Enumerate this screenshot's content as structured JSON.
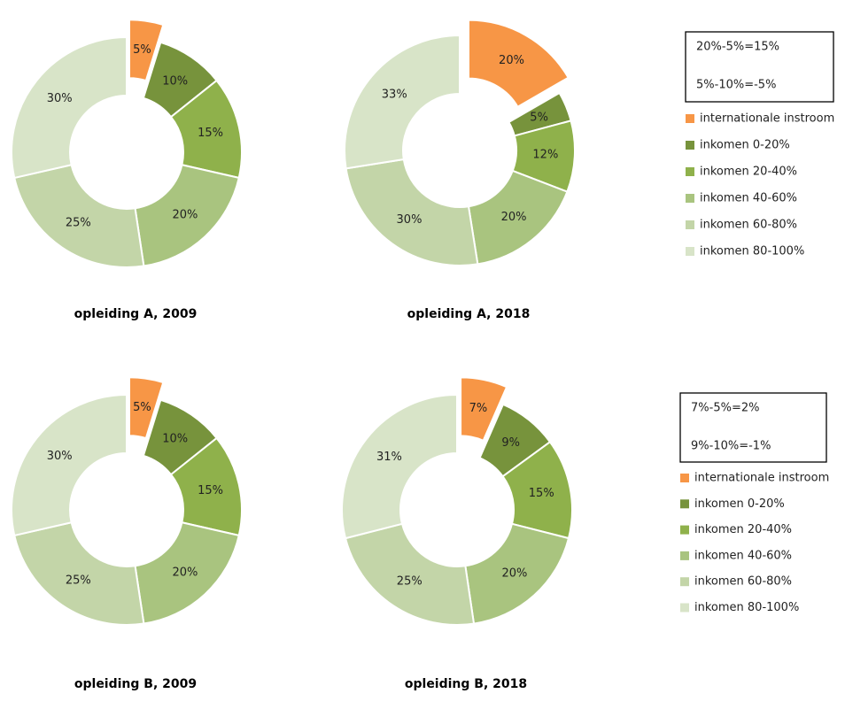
{
  "chart_data": [
    {
      "type": "donut",
      "title": "opleiding A, 2009",
      "categories": [
        "internationale instroom",
        "inkomen 0-20%",
        "inkomen 20-40%",
        "inkomen 40-60%",
        "inkomen 60-80%",
        "inkomen 80-100%"
      ],
      "values": [
        5,
        10,
        15,
        20,
        25,
        30
      ],
      "value_labels": [
        "5%",
        "10%",
        "15%",
        "20%",
        "25%",
        "30%"
      ],
      "colors": [
        "#f79646",
        "#77933c",
        "#8fb14b",
        "#a9c47f",
        "#c3d5a8",
        "#d8e4c8"
      ]
    },
    {
      "type": "donut",
      "title": "opleiding A, 2018",
      "categories": [
        "internationale instroom",
        "inkomen 0-20%",
        "inkomen 20-40%",
        "inkomen 40-60%",
        "inkomen 60-80%",
        "inkomen 80-100%"
      ],
      "values": [
        20,
        5,
        12,
        20,
        30,
        33
      ],
      "value_labels": [
        "20%",
        "5%",
        "12%",
        "20%",
        "30%",
        "33%"
      ],
      "colors": [
        "#f79646",
        "#77933c",
        "#8fb14b",
        "#a9c47f",
        "#c3d5a8",
        "#d8e4c8"
      ],
      "legend": "right",
      "annotations": [
        "20%-5%=15%",
        "5%-10%=-5%"
      ]
    },
    {
      "type": "donut",
      "title": "opleiding B, 2009",
      "categories": [
        "internationale instroom",
        "inkomen 0-20%",
        "inkomen 20-40%",
        "inkomen 40-60%",
        "inkomen 60-80%",
        "inkomen 80-100%"
      ],
      "values": [
        5,
        10,
        15,
        20,
        25,
        30
      ],
      "value_labels": [
        "5%",
        "10%",
        "15%",
        "20%",
        "25%",
        "30%"
      ],
      "colors": [
        "#f79646",
        "#77933c",
        "#8fb14b",
        "#a9c47f",
        "#c3d5a8",
        "#d8e4c8"
      ]
    },
    {
      "type": "donut",
      "title": "opleiding B, 2018",
      "categories": [
        "internationale instroom",
        "inkomen 0-20%",
        "inkomen 20-40%",
        "inkomen 40-60%",
        "inkomen 60-80%",
        "inkomen 80-100%"
      ],
      "values": [
        7,
        9,
        15,
        20,
        25,
        31
      ],
      "value_labels": [
        "7%",
        "9%",
        "15%",
        "20%",
        "25%",
        "31%"
      ],
      "colors": [
        "#f79646",
        "#77933c",
        "#8fb14b",
        "#a9c47f",
        "#c3d5a8",
        "#d8e4c8"
      ],
      "legend": "right",
      "annotations": [
        "7%-5%=2%",
        "9%-10%=-1%"
      ]
    }
  ]
}
